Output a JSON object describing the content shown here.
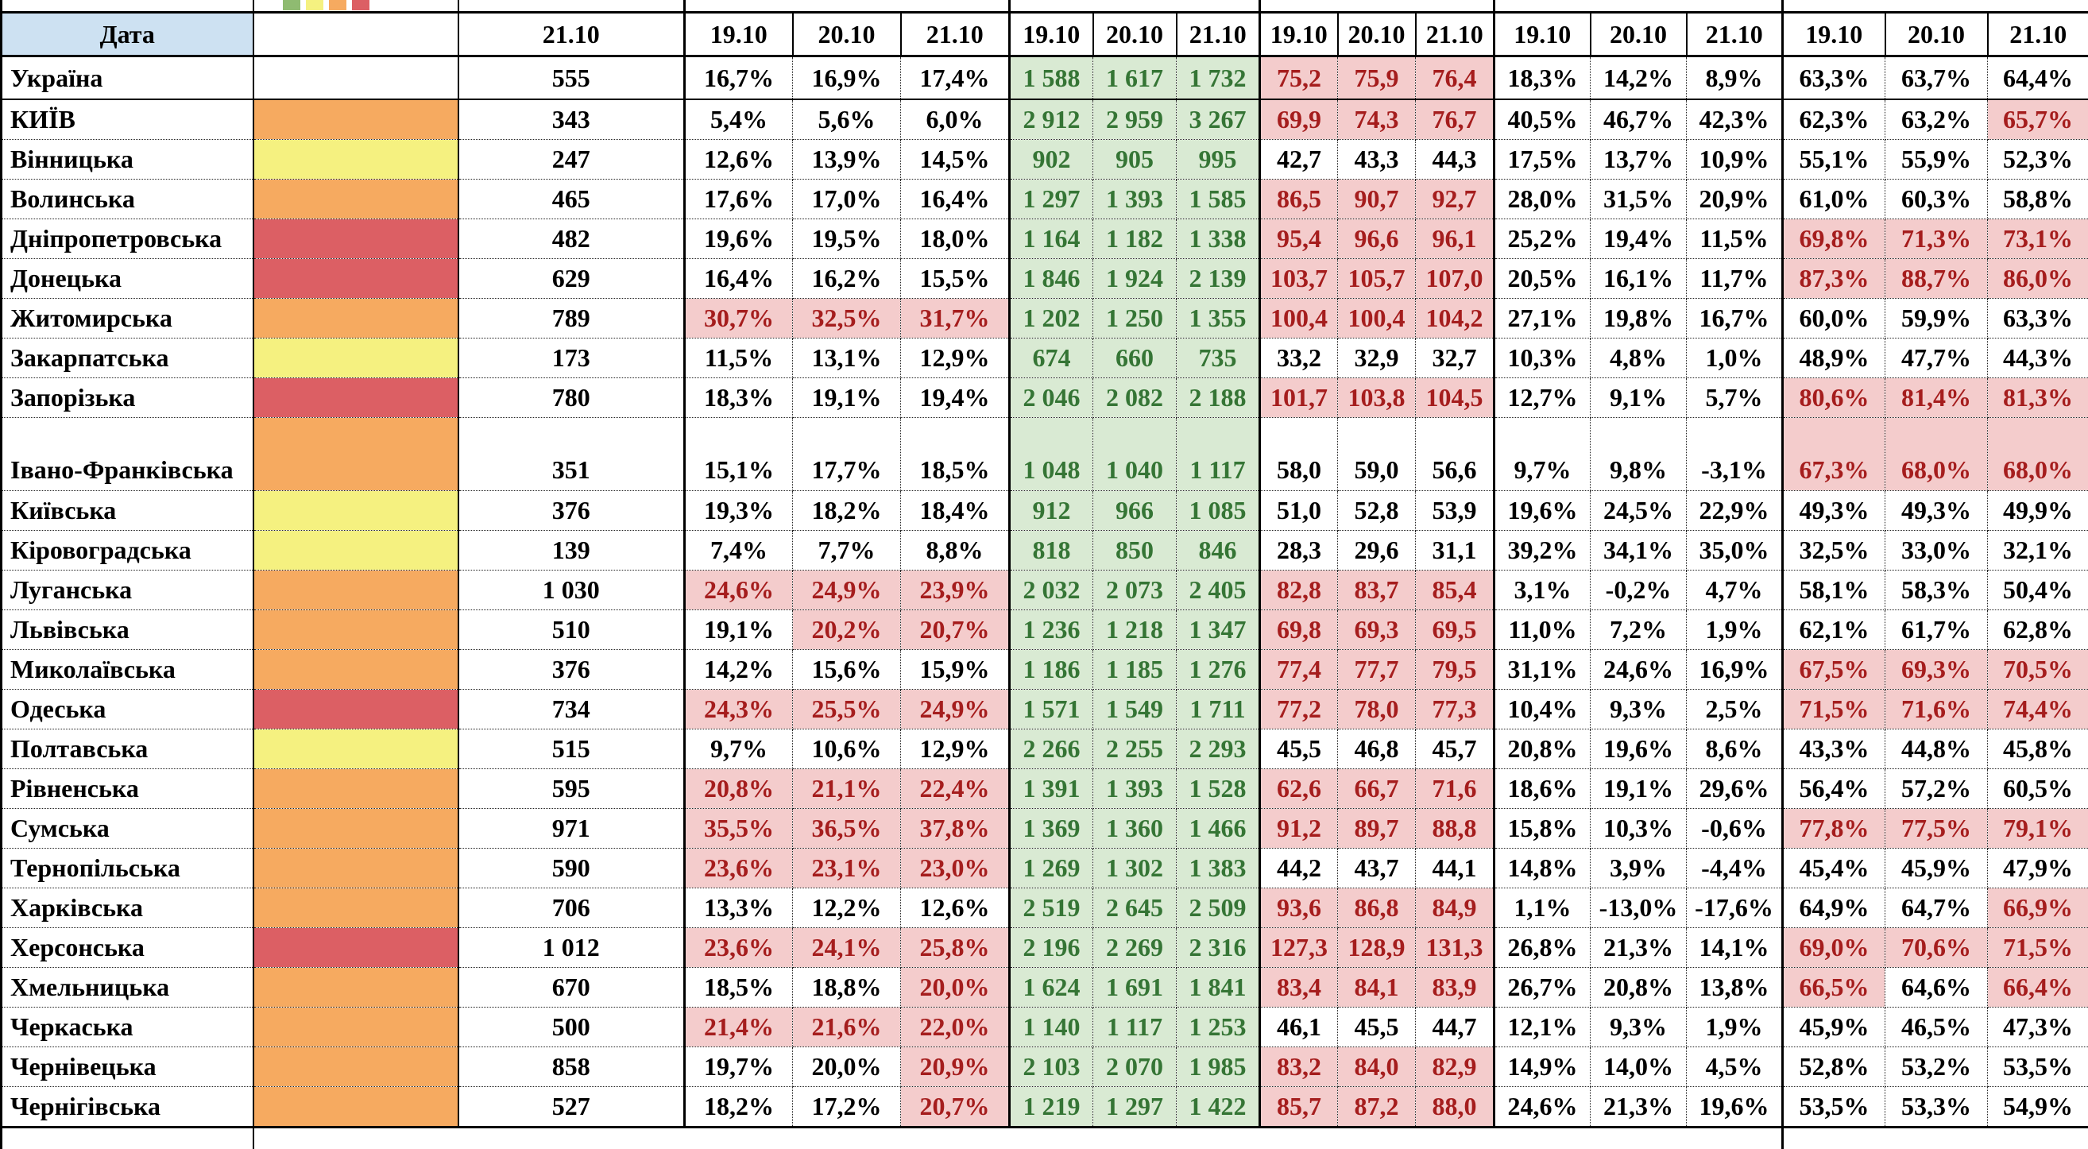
{
  "palette": {
    "risk_orange": "#F6AA60",
    "risk_yellow": "#F5F180",
    "risk_red": "#DC5F64",
    "legend_green": "#8FBB71",
    "green_text": "#357535",
    "green_bg": "#D9EAD3",
    "red_text": "#A51D1D",
    "pink_bg": "#F4CCCC",
    "header_blue": "#CDE1F2"
  },
  "header": {
    "date_label": "Дата",
    "single_date": "21.10",
    "group_dates": [
      "19.10",
      "20.10",
      "21.10"
    ],
    "legend_colors": [
      "#8FBB71",
      "#F5F180",
      "#F6AA60",
      "#DC5F64"
    ],
    "legend_names": [
      "green",
      "yellow",
      "orange",
      "red"
    ]
  },
  "rows": [
    {
      "name": "Україна",
      "color": null,
      "value": "555",
      "pct1": [
        "16,7%",
        "16,9%",
        "17,4%"
      ],
      "counts": [
        "1 588",
        "1 617",
        "1 732"
      ],
      "rates": [
        "75,2",
        "75,9",
        "76,4"
      ],
      "rates_hl": true,
      "pct2": [
        "18,3%",
        "14,2%",
        "8,9%"
      ],
      "pct3": [
        "63,3%",
        "63,7%",
        "64,4%"
      ]
    },
    {
      "name": "КИЇВ",
      "color": "orange",
      "value": "343",
      "pct1": [
        "5,4%",
        "5,6%",
        "6,0%"
      ],
      "counts": [
        "2 912",
        "2 959",
        "3 267"
      ],
      "rates": [
        "69,9",
        "74,3",
        "76,7"
      ],
      "rates_hl": true,
      "pct2": [
        "40,5%",
        "46,7%",
        "42,3%"
      ],
      "pct3": [
        "62,3%",
        "63,2%",
        "65,7%"
      ],
      "pct3_hl": [
        false,
        false,
        true
      ]
    },
    {
      "name": "Вінницька",
      "color": "yellow",
      "value": "247",
      "pct1": [
        "12,6%",
        "13,9%",
        "14,5%"
      ],
      "counts": [
        "902",
        "905",
        "995"
      ],
      "rates": [
        "42,7",
        "43,3",
        "44,3"
      ],
      "rates_hl": false,
      "pct2": [
        "17,5%",
        "13,7%",
        "10,9%"
      ],
      "pct3": [
        "55,1%",
        "55,9%",
        "52,3%"
      ]
    },
    {
      "name": "Волинська",
      "color": "orange",
      "value": "465",
      "pct1": [
        "17,6%",
        "17,0%",
        "16,4%"
      ],
      "counts": [
        "1 297",
        "1 393",
        "1 585"
      ],
      "rates": [
        "86,5",
        "90,7",
        "92,7"
      ],
      "rates_hl": true,
      "pct2": [
        "28,0%",
        "31,5%",
        "20,9%"
      ],
      "pct3": [
        "61,0%",
        "60,3%",
        "58,8%"
      ]
    },
    {
      "name": "Дніпропетровська",
      "color": "red",
      "value": "482",
      "pct1": [
        "19,6%",
        "19,5%",
        "18,0%"
      ],
      "counts": [
        "1 164",
        "1 182",
        "1 338"
      ],
      "rates": [
        "95,4",
        "96,6",
        "96,1"
      ],
      "rates_hl": true,
      "pct2": [
        "25,2%",
        "19,4%",
        "11,5%"
      ],
      "pct3": [
        "69,8%",
        "71,3%",
        "73,1%"
      ],
      "pct3_hl": [
        true,
        true,
        true
      ]
    },
    {
      "name": "Донецька",
      "color": "red",
      "value": "629",
      "pct1": [
        "16,4%",
        "16,2%",
        "15,5%"
      ],
      "counts": [
        "1 846",
        "1 924",
        "2 139"
      ],
      "rates": [
        "103,7",
        "105,7",
        "107,0"
      ],
      "rates_hl": true,
      "pct2": [
        "20,5%",
        "16,1%",
        "11,7%"
      ],
      "pct3": [
        "87,3%",
        "88,7%",
        "86,0%"
      ],
      "pct3_hl": [
        true,
        true,
        true
      ]
    },
    {
      "name": "Житомирська",
      "color": "orange",
      "value": "789",
      "pct1": [
        "30,7%",
        "32,5%",
        "31,7%"
      ],
      "pct1_hl": [
        true,
        true,
        true
      ],
      "counts": [
        "1 202",
        "1 250",
        "1 355"
      ],
      "rates": [
        "100,4",
        "100,4",
        "104,2"
      ],
      "rates_hl": true,
      "pct2": [
        "27,1%",
        "19,8%",
        "16,7%"
      ],
      "pct3": [
        "60,0%",
        "59,9%",
        "63,3%"
      ]
    },
    {
      "name": "Закарпатська",
      "color": "yellow",
      "value": "173",
      "pct1": [
        "11,5%",
        "13,1%",
        "12,9%"
      ],
      "counts": [
        "674",
        "660",
        "735"
      ],
      "rates": [
        "33,2",
        "32,9",
        "32,7"
      ],
      "rates_hl": false,
      "pct2": [
        "10,3%",
        "4,8%",
        "1,0%"
      ],
      "pct3": [
        "48,9%",
        "47,7%",
        "44,3%"
      ]
    },
    {
      "name": "Запорізька",
      "color": "red",
      "value": "780",
      "pct1": [
        "18,3%",
        "19,1%",
        "19,4%"
      ],
      "counts": [
        "2 046",
        "2 082",
        "2 188"
      ],
      "rates": [
        "101,7",
        "103,8",
        "104,5"
      ],
      "rates_hl": true,
      "pct2": [
        "12,7%",
        "9,1%",
        "5,7%"
      ],
      "pct3": [
        "80,6%",
        "81,4%",
        "81,3%"
      ],
      "pct3_hl": [
        true,
        true,
        true
      ]
    },
    {
      "name": "Івано-Франківська",
      "color": "orange",
      "value": "351",
      "tall": true,
      "pct1": [
        "15,1%",
        "17,7%",
        "18,5%"
      ],
      "counts": [
        "1 048",
        "1 040",
        "1 117"
      ],
      "rates": [
        "58,0",
        "59,0",
        "56,6"
      ],
      "rates_hl": false,
      "pct2": [
        "9,7%",
        "9,8%",
        "-3,1%"
      ],
      "pct3": [
        "67,3%",
        "68,0%",
        "68,0%"
      ],
      "pct3_hl": [
        true,
        true,
        true
      ]
    },
    {
      "name": "Київська",
      "color": "yellow",
      "value": "376",
      "pct1": [
        "19,3%",
        "18,2%",
        "18,4%"
      ],
      "counts": [
        "912",
        "966",
        "1 085"
      ],
      "rates": [
        "51,0",
        "52,8",
        "53,9"
      ],
      "rates_hl": false,
      "pct2": [
        "19,6%",
        "24,5%",
        "22,9%"
      ],
      "pct3": [
        "49,3%",
        "49,3%",
        "49,9%"
      ]
    },
    {
      "name": "Кіровоградська",
      "color": "yellow",
      "value": "139",
      "pct1": [
        "7,4%",
        "7,7%",
        "8,8%"
      ],
      "counts": [
        "818",
        "850",
        "846"
      ],
      "rates": [
        "28,3",
        "29,6",
        "31,1"
      ],
      "rates_hl": false,
      "pct2": [
        "39,2%",
        "34,1%",
        "35,0%"
      ],
      "pct3": [
        "32,5%",
        "33,0%",
        "32,1%"
      ]
    },
    {
      "name": "Луганська",
      "color": "orange",
      "value": "1 030",
      "pct1": [
        "24,6%",
        "24,9%",
        "23,9%"
      ],
      "pct1_hl": [
        true,
        true,
        true
      ],
      "counts": [
        "2 032",
        "2 073",
        "2 405"
      ],
      "rates": [
        "82,8",
        "83,7",
        "85,4"
      ],
      "rates_hl": true,
      "pct2": [
        "3,1%",
        "-0,2%",
        "4,7%"
      ],
      "pct3": [
        "58,1%",
        "58,3%",
        "50,4%"
      ]
    },
    {
      "name": "Львівська",
      "color": "orange",
      "value": "510",
      "pct1": [
        "19,1%",
        "20,2%",
        "20,7%"
      ],
      "pct1_hl": [
        false,
        true,
        true
      ],
      "counts": [
        "1 236",
        "1 218",
        "1 347"
      ],
      "rates": [
        "69,8",
        "69,3",
        "69,5"
      ],
      "rates_hl": true,
      "pct2": [
        "11,0%",
        "7,2%",
        "1,9%"
      ],
      "pct3": [
        "62,1%",
        "61,7%",
        "62,8%"
      ]
    },
    {
      "name": "Миколаївська",
      "color": "orange",
      "value": "376",
      "pct1": [
        "14,2%",
        "15,6%",
        "15,9%"
      ],
      "counts": [
        "1 186",
        "1 185",
        "1 276"
      ],
      "rates": [
        "77,4",
        "77,7",
        "79,5"
      ],
      "rates_hl": true,
      "pct2": [
        "31,1%",
        "24,6%",
        "16,9%"
      ],
      "pct3": [
        "67,5%",
        "69,3%",
        "70,5%"
      ],
      "pct3_hl": [
        true,
        true,
        true
      ]
    },
    {
      "name": "Одеська",
      "color": "red",
      "value": "734",
      "pct1": [
        "24,3%",
        "25,5%",
        "24,9%"
      ],
      "pct1_hl": [
        true,
        true,
        true
      ],
      "counts": [
        "1 571",
        "1 549",
        "1 711"
      ],
      "rates": [
        "77,2",
        "78,0",
        "77,3"
      ],
      "rates_hl": true,
      "pct2": [
        "10,4%",
        "9,3%",
        "2,5%"
      ],
      "pct3": [
        "71,5%",
        "71,6%",
        "74,4%"
      ],
      "pct3_hl": [
        true,
        true,
        true
      ]
    },
    {
      "name": "Полтавська",
      "color": "yellow",
      "value": "515",
      "pct1": [
        "9,7%",
        "10,6%",
        "12,9%"
      ],
      "counts": [
        "2 266",
        "2 255",
        "2 293"
      ],
      "rates": [
        "45,5",
        "46,8",
        "45,7"
      ],
      "rates_hl": false,
      "pct2": [
        "20,8%",
        "19,6%",
        "8,6%"
      ],
      "pct3": [
        "43,3%",
        "44,8%",
        "45,8%"
      ]
    },
    {
      "name": "Рівненська",
      "color": "orange",
      "value": "595",
      "pct1": [
        "20,8%",
        "21,1%",
        "22,4%"
      ],
      "pct1_hl": [
        true,
        true,
        true
      ],
      "counts": [
        "1 391",
        "1 393",
        "1 528"
      ],
      "rates": [
        "62,6",
        "66,7",
        "71,6"
      ],
      "rates_hl": true,
      "pct2": [
        "18,6%",
        "19,1%",
        "29,6%"
      ],
      "pct3": [
        "56,4%",
        "57,2%",
        "60,5%"
      ]
    },
    {
      "name": "Сумська",
      "color": "orange",
      "value": "971",
      "pct1": [
        "35,5%",
        "36,5%",
        "37,8%"
      ],
      "pct1_hl": [
        true,
        true,
        true
      ],
      "counts": [
        "1 369",
        "1 360",
        "1 466"
      ],
      "rates": [
        "91,2",
        "89,7",
        "88,8"
      ],
      "rates_hl": true,
      "pct2": [
        "15,8%",
        "10,3%",
        "-0,6%"
      ],
      "pct3": [
        "77,8%",
        "77,5%",
        "79,1%"
      ],
      "pct3_hl": [
        true,
        true,
        true
      ]
    },
    {
      "name": "Тернопільська",
      "color": "orange",
      "value": "590",
      "pct1": [
        "23,6%",
        "23,1%",
        "23,0%"
      ],
      "pct1_hl": [
        true,
        true,
        true
      ],
      "counts": [
        "1 269",
        "1 302",
        "1 383"
      ],
      "rates": [
        "44,2",
        "43,7",
        "44,1"
      ],
      "rates_hl": false,
      "pct2": [
        "14,8%",
        "3,9%",
        "-4,4%"
      ],
      "pct3": [
        "45,4%",
        "45,9%",
        "47,9%"
      ]
    },
    {
      "name": "Харківська",
      "color": "orange",
      "value": "706",
      "pct1": [
        "13,3%",
        "12,2%",
        "12,6%"
      ],
      "counts": [
        "2 519",
        "2 645",
        "2 509"
      ],
      "rates": [
        "93,6",
        "86,8",
        "84,9"
      ],
      "rates_hl": true,
      "pct2": [
        "1,1%",
        "-13,0%",
        "-17,6%"
      ],
      "pct3": [
        "64,9%",
        "64,7%",
        "66,9%"
      ],
      "pct3_hl": [
        false,
        false,
        true
      ]
    },
    {
      "name": "Херсонська",
      "color": "red",
      "value": "1 012",
      "pct1": [
        "23,6%",
        "24,1%",
        "25,8%"
      ],
      "pct1_hl": [
        true,
        true,
        true
      ],
      "counts": [
        "2 196",
        "2 269",
        "2 316"
      ],
      "rates": [
        "127,3",
        "128,9",
        "131,3"
      ],
      "rates_hl": true,
      "pct2": [
        "26,8%",
        "21,3%",
        "14,1%"
      ],
      "pct3": [
        "69,0%",
        "70,6%",
        "71,5%"
      ],
      "pct3_hl": [
        true,
        true,
        true
      ]
    },
    {
      "name": "Хмельницька",
      "color": "orange",
      "value": "670",
      "pct1": [
        "18,5%",
        "18,8%",
        "20,0%"
      ],
      "pct1_hl": [
        false,
        false,
        true
      ],
      "counts": [
        "1 624",
        "1 691",
        "1 841"
      ],
      "rates": [
        "83,4",
        "84,1",
        "83,9"
      ],
      "rates_hl": true,
      "pct2": [
        "26,7%",
        "20,8%",
        "13,8%"
      ],
      "pct3": [
        "66,5%",
        "64,6%",
        "66,4%"
      ],
      "pct3_hl": [
        true,
        false,
        true
      ]
    },
    {
      "name": "Черкаська",
      "color": "orange",
      "value": "500",
      "pct1": [
        "21,4%",
        "21,6%",
        "22,0%"
      ],
      "pct1_hl": [
        true,
        true,
        true
      ],
      "counts": [
        "1 140",
        "1 117",
        "1 253"
      ],
      "rates": [
        "46,1",
        "45,5",
        "44,7"
      ],
      "rates_hl": false,
      "pct2": [
        "12,1%",
        "9,3%",
        "1,9%"
      ],
      "pct3": [
        "45,9%",
        "46,5%",
        "47,3%"
      ]
    },
    {
      "name": "Чернівецька",
      "color": "orange",
      "value": "858",
      "pct1": [
        "19,7%",
        "20,0%",
        "20,9%"
      ],
      "pct1_hl": [
        false,
        false,
        true
      ],
      "counts": [
        "2 103",
        "2 070",
        "1 985"
      ],
      "rates": [
        "83,2",
        "84,0",
        "82,9"
      ],
      "rates_hl": true,
      "pct2": [
        "14,9%",
        "14,0%",
        "4,5%"
      ],
      "pct3": [
        "52,8%",
        "53,2%",
        "53,5%"
      ]
    },
    {
      "name": "Чернігівська",
      "color": "orange",
      "value": "527",
      "pct1": [
        "18,2%",
        "17,2%",
        "20,7%"
      ],
      "pct1_hl": [
        false,
        false,
        true
      ],
      "counts": [
        "1 219",
        "1 297",
        "1 422"
      ],
      "rates": [
        "85,7",
        "87,2",
        "88,0"
      ],
      "rates_hl": true,
      "pct2": [
        "24,6%",
        "21,3%",
        "19,6%"
      ],
      "pct3": [
        "53,5%",
        "53,3%",
        "54,9%"
      ]
    }
  ]
}
